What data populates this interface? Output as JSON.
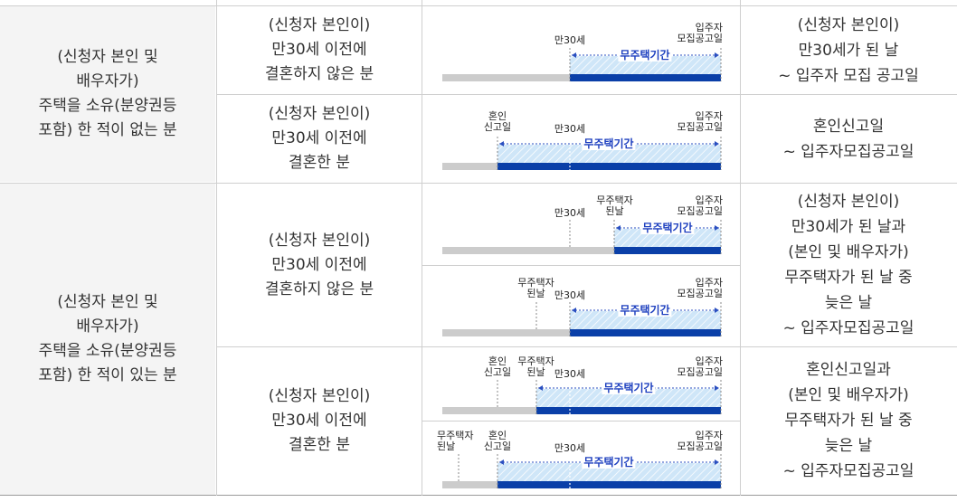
{
  "groups": [
    {
      "id": "g1",
      "label": "(신청자 본인 및\n배우자가)\n주택을 소유(분양권등\n포함) 한 적이 없는 분"
    },
    {
      "id": "g2",
      "label": "(신청자 본인 및\n배우자가)\n주택을 소유(분양권등\n포함) 한 적이 있는 분"
    }
  ],
  "conditions": [
    "(신청자 본인이)\n만30세 이전에\n결혼하지 않은 분",
    "(신청자 본인이)\n만30세 이전에\n결혼한 분",
    "(신청자 본인이)\n만30세 이전에\n결혼하지 않은 분",
    "(신청자 본인이)\n만30세 이전에\n결혼한 분"
  ],
  "periods": [
    "(신청자 본인이)\n만30세가 된 날\n~ 입주자 모집 공고일",
    "혼인신고일\n~ 입주자모집공고일",
    "(신청자 본인이)\n만30세가 된 날과\n(본인 및 배우자가)\n무주택자가 된 날 중\n늦은 날\n~ 입주자모집공고일",
    "혼인신고일과\n(본인 및 배우자가)\n무주택자가 된 날 중\n늦은 날\n~ 입주자모집공고일"
  ],
  "diagram_labels": {
    "age30": "만30세",
    "announcement": "입주자\n모집공고일",
    "marriage": "혼인\n신고일",
    "homeless": "무주택자\n된날",
    "period": "무주택기간"
  },
  "colors": {
    "gray_bar": "#cccccc",
    "blue_bar": "#0a3fa8",
    "hatch_fill": "#cfe6f8",
    "dashed": "#2a4fc0",
    "group_bg": "#f4f4f4"
  }
}
